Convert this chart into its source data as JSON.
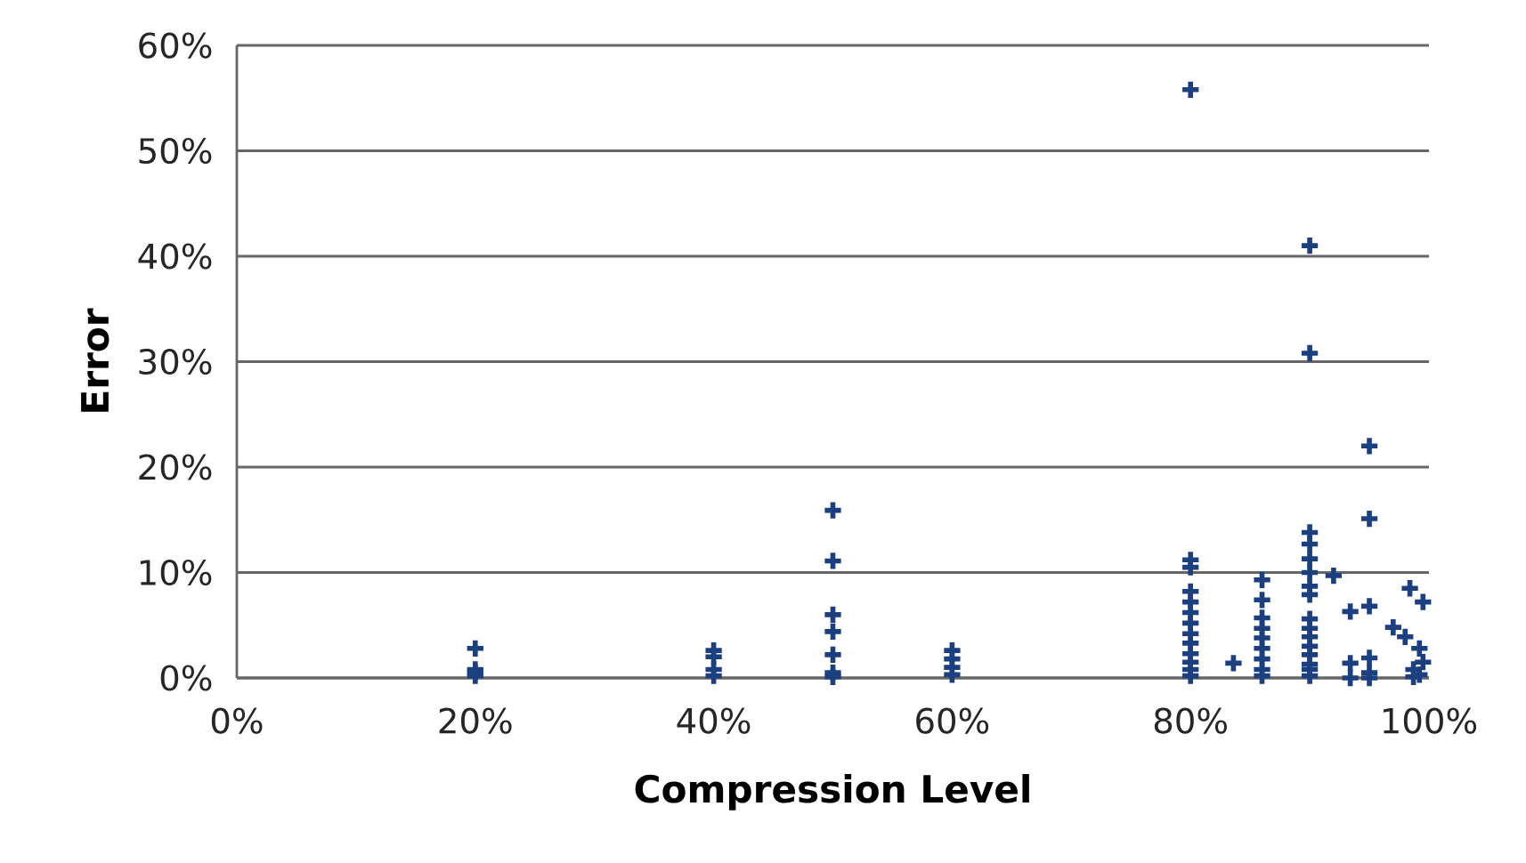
{
  "chart_data": {
    "type": "scatter",
    "xlabel": "Compression Level",
    "ylabel": "Error",
    "x": [
      20,
      20,
      20,
      20,
      40,
      40,
      40,
      40,
      50,
      50,
      50,
      50,
      50,
      50,
      50,
      60,
      60,
      60,
      60,
      80,
      80,
      80,
      80,
      80,
      80,
      80,
      80,
      80,
      80,
      80,
      80,
      80,
      83.6,
      86,
      86,
      86,
      86,
      86,
      86,
      86,
      86,
      86,
      90,
      90,
      90,
      90,
      90,
      90,
      90,
      90,
      90,
      90,
      90,
      90,
      90,
      90,
      90,
      90,
      92,
      93.4,
      93.4,
      93.4,
      95,
      95,
      95,
      95,
      95,
      95,
      97,
      98,
      98.4,
      98.7,
      98.7,
      99.2,
      99.2,
      99.5,
      99.5
    ],
    "values": [
      2.8,
      0.8,
      0.5,
      0.2,
      2.6,
      2.0,
      0.8,
      0.2,
      15.9,
      11.1,
      6.0,
      4.4,
      2.2,
      0.5,
      0.1,
      2.6,
      1.8,
      1.0,
      0.3,
      55.8,
      11.2,
      10.5,
      8.2,
      7.2,
      6.2,
      5.2,
      4.2,
      3.3,
      2.3,
      1.5,
      0.8,
      0.2,
      1.4,
      9.3,
      7.4,
      5.7,
      4.7,
      3.8,
      2.8,
      1.8,
      0.8,
      0.2,
      41.0,
      30.8,
      13.8,
      12.7,
      11.3,
      10.0,
      8.7,
      7.9,
      5.6,
      4.7,
      3.9,
      3.0,
      2.2,
      1.3,
      0.8,
      0.2,
      9.7,
      6.3,
      1.4,
      0,
      22.0,
      15.1,
      6.8,
      1.9,
      0.5,
      0,
      4.8,
      3.9,
      8.5,
      0.8,
      0.1,
      2.8,
      0.3,
      7.2,
      1.5
    ],
    "color": "#1c3f7f",
    "marker": "cross",
    "grid": "y",
    "xlim": [
      0,
      100
    ],
    "ylim": [
      0,
      60
    ],
    "xticks": [
      {
        "value": 0,
        "label": "0%"
      },
      {
        "value": 20,
        "label": "20%"
      },
      {
        "value": 40,
        "label": "40%"
      },
      {
        "value": 60,
        "label": "60%"
      },
      {
        "value": 80,
        "label": "80%"
      },
      {
        "value": 100,
        "label": "100%"
      }
    ],
    "yticks": [
      {
        "value": 0,
        "label": "0%"
      },
      {
        "value": 10,
        "label": "10%"
      },
      {
        "value": 20,
        "label": "20%"
      },
      {
        "value": 30,
        "label": "30%"
      },
      {
        "value": 40,
        "label": "40%"
      },
      {
        "value": 50,
        "label": "50%"
      },
      {
        "value": 60,
        "label": "60%"
      }
    ]
  }
}
